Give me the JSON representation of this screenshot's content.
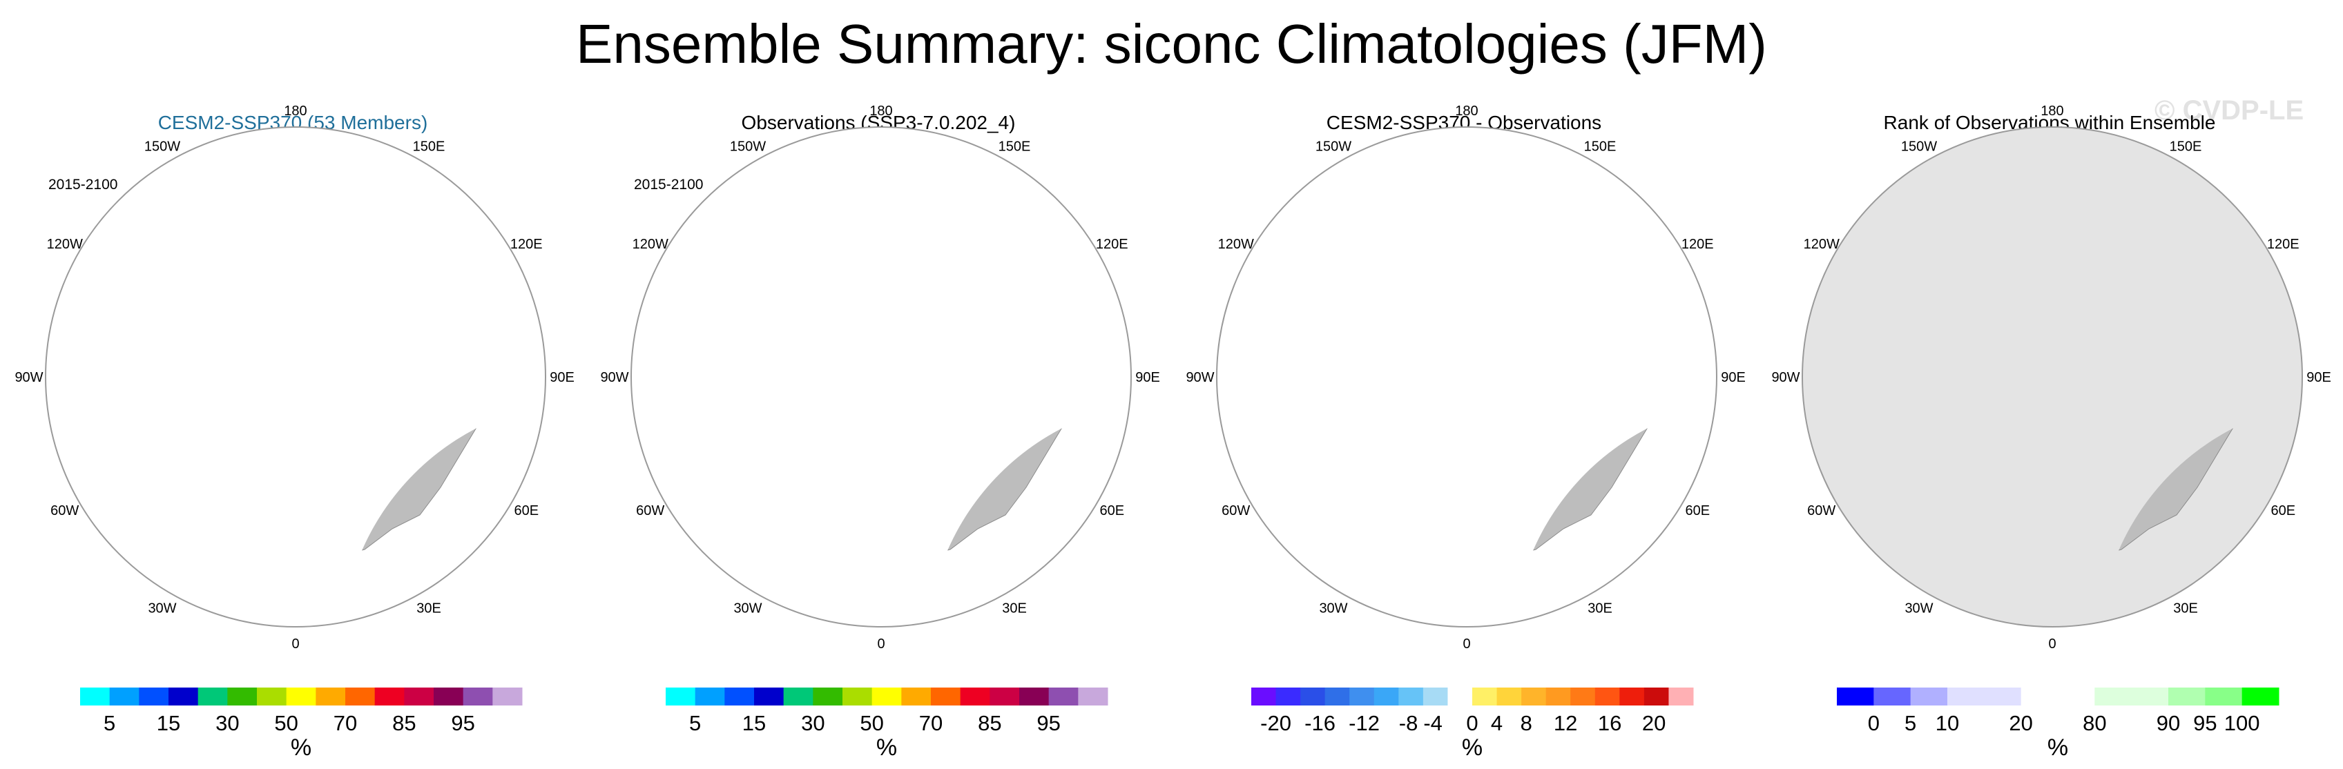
{
  "title": "Ensemble Summary: siconc Climatologies (JFM)",
  "watermark": "© CVDP-LE",
  "land_color": "#bdbdbd",
  "panels": [
    {
      "title": "CESM2-SSP370 (53 Members)",
      "period": "2015-2100",
      "lon_labels": [
        "180",
        "150W",
        "150E",
        "120W",
        "120E",
        "90W",
        "90E",
        "60W",
        "60E",
        "30W",
        "30E",
        "0"
      ],
      "colorbar": {
        "units": "%",
        "colors": [
          "#00ffff",
          "#00a0ff",
          "#0050ff",
          "#0000cc",
          "#00c878",
          "#33bb00",
          "#aadd00",
          "#ffff00",
          "#ffaa00",
          "#ff6600",
          "#ee0022",
          "#cc0044",
          "#880055",
          "#8e4fb0",
          "#c8a8dc"
        ],
        "labels": [
          "5",
          "15",
          "30",
          "50",
          "70",
          "85",
          "95"
        ],
        "label_positions": [
          1,
          3,
          5,
          7,
          9,
          11,
          13
        ]
      }
    },
    {
      "title": "Observations (SSP3-7.0.202_4)",
      "period": "2015-2100",
      "lon_labels": [
        "180",
        "150W",
        "150E",
        "120W",
        "120E",
        "90W",
        "90E",
        "60W",
        "60E",
        "30W",
        "30E",
        "0"
      ],
      "colorbar": {
        "units": "%",
        "colors": [
          "#00ffff",
          "#00a0ff",
          "#0050ff",
          "#0000cc",
          "#00c878",
          "#33bb00",
          "#aadd00",
          "#ffff00",
          "#ffaa00",
          "#ff6600",
          "#ee0022",
          "#cc0044",
          "#880055",
          "#8e4fb0",
          "#c8a8dc"
        ],
        "labels": [
          "5",
          "15",
          "30",
          "50",
          "70",
          "85",
          "95"
        ],
        "label_positions": [
          1,
          3,
          5,
          7,
          9,
          11,
          13
        ]
      }
    },
    {
      "title": "CESM2-SSP370 - Observations",
      "period": "",
      "lon_labels": [
        "180",
        "150W",
        "150E",
        "120W",
        "120E",
        "90W",
        "90E",
        "60W",
        "60E",
        "30W",
        "30E",
        "0"
      ],
      "colorbar": {
        "units": "%",
        "colors": [
          "#6a0dff",
          "#3a2bff",
          "#2a4fe8",
          "#2f6fe8",
          "#3f8fef",
          "#3aa7f7",
          "#66c3f7",
          "#a7dbf5",
          "#ffffff",
          "#fff066",
          "#ffd43a",
          "#ffb42a",
          "#ff9a20",
          "#ff7a16",
          "#ff5512",
          "#ee1e0c",
          "#cc0c0c",
          "#ffb0b4"
        ],
        "labels": [
          "-20",
          "-16",
          "-12",
          "-8",
          "-4",
          "0",
          "4",
          "8",
          "12",
          "16",
          "20"
        ],
        "label_positions": [
          1,
          2.8,
          4.6,
          6.4,
          7.4,
          9,
          10,
          11.2,
          12.8,
          14.6,
          16.4
        ]
      }
    },
    {
      "title": "Rank of Observations within Ensemble",
      "period": "",
      "lon_labels": [
        "180",
        "150W",
        "150E",
        "120W",
        "120E",
        "90W",
        "90E",
        "60W",
        "60E",
        "30W",
        "30E",
        "0"
      ],
      "colorbar": {
        "units": "%",
        "colors": [
          "#0000ff",
          "#6666ff",
          "#b0b0ff",
          "#e0e0ff",
          "#e0e0ff",
          "#ffffff",
          "#ffffff",
          "#ddffdd",
          "#ddffdd",
          "#b0ffb0",
          "#88ff88",
          "#00ff00"
        ],
        "labels": [
          "0",
          "5",
          "10",
          "20",
          "80",
          "90",
          "95",
          "100"
        ],
        "label_positions": [
          1,
          2,
          3,
          5,
          7,
          9,
          10,
          11
        ]
      }
    }
  ]
}
